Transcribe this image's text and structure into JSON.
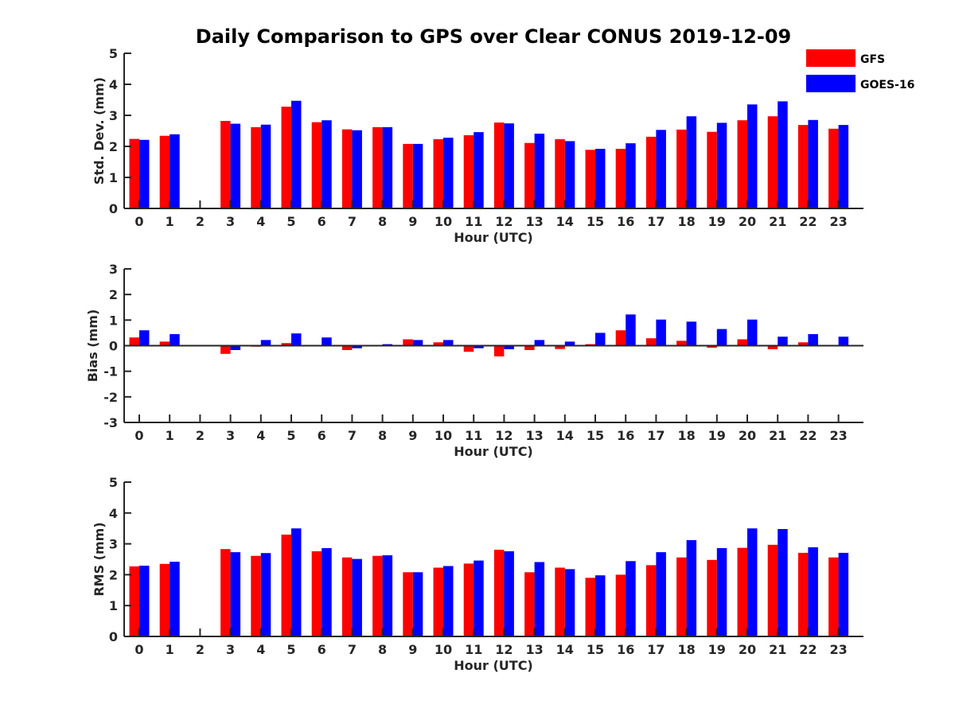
{
  "chart_data": [
    {
      "type": "bar",
      "title": "Daily Comparison to GPS over Clear CONUS 2019-12-09",
      "xlabel": "Hour (UTC)",
      "ylabel": "Std. Dev. (mm)",
      "ylim": [
        0,
        5
      ],
      "yticks": [
        "0",
        "1",
        "2",
        "3",
        "4",
        "5"
      ],
      "categories": [
        "0",
        "1",
        "2",
        "3",
        "4",
        "5",
        "6",
        "7",
        "8",
        "9",
        "10",
        "11",
        "12",
        "13",
        "14",
        "15",
        "16",
        "17",
        "18",
        "19",
        "20",
        "21",
        "22",
        "23"
      ],
      "series": [
        {
          "name": "GFS",
          "color": "#ff0000",
          "values": [
            2.24,
            2.34,
            null,
            2.82,
            2.62,
            3.28,
            2.78,
            2.55,
            2.62,
            2.08,
            2.23,
            2.36,
            2.77,
            2.11,
            2.23,
            1.89,
            1.92,
            2.31,
            2.54,
            2.47,
            2.84,
            2.97,
            2.69,
            2.57
          ]
        },
        {
          "name": "GOES-16",
          "color": "#0000ff",
          "values": [
            2.21,
            2.39,
            null,
            2.73,
            2.7,
            3.47,
            2.84,
            2.52,
            2.62,
            2.08,
            2.28,
            2.46,
            2.74,
            2.41,
            2.17,
            1.92,
            2.1,
            2.53,
            2.97,
            2.76,
            3.35,
            3.45,
            2.85,
            2.69
          ]
        }
      ]
    },
    {
      "type": "bar",
      "xlabel": "Hour (UTC)",
      "ylabel": "Bias (mm)",
      "ylim": [
        -3,
        3
      ],
      "yticks": [
        "-3",
        "-2",
        "-1",
        "0",
        "1",
        "2",
        "3"
      ],
      "categories": [
        "0",
        "1",
        "2",
        "3",
        "4",
        "5",
        "6",
        "7",
        "8",
        "9",
        "10",
        "11",
        "12",
        "13",
        "14",
        "15",
        "16",
        "17",
        "18",
        "19",
        "20",
        "21",
        "22",
        "23"
      ],
      "series": [
        {
          "name": "GFS",
          "color": "#ff0000",
          "values": [
            0.32,
            0.16,
            null,
            -0.32,
            -0.04,
            0.1,
            0.0,
            -0.17,
            0.02,
            0.25,
            0.13,
            -0.24,
            -0.42,
            -0.17,
            -0.13,
            0.06,
            0.6,
            0.29,
            0.19,
            -0.08,
            0.25,
            -0.14,
            0.13,
            -0.03
          ]
        },
        {
          "name": "GOES-16",
          "color": "#0000ff",
          "values": [
            0.6,
            0.45,
            null,
            -0.17,
            0.22,
            0.48,
            0.32,
            -0.1,
            0.06,
            0.22,
            0.22,
            -0.1,
            -0.14,
            0.22,
            0.16,
            0.5,
            1.22,
            1.02,
            0.94,
            0.65,
            1.02,
            0.35,
            0.45,
            0.35
          ]
        }
      ]
    },
    {
      "type": "bar",
      "xlabel": "Hour (UTC)",
      "ylabel": "RMS (mm)",
      "ylim": [
        0,
        5
      ],
      "yticks": [
        "0",
        "1",
        "2",
        "3",
        "4",
        "5"
      ],
      "categories": [
        "0",
        "1",
        "2",
        "3",
        "4",
        "5",
        "6",
        "7",
        "8",
        "9",
        "10",
        "11",
        "12",
        "13",
        "14",
        "15",
        "16",
        "17",
        "18",
        "19",
        "20",
        "21",
        "22",
        "23"
      ],
      "series": [
        {
          "name": "GFS",
          "color": "#ff0000",
          "values": [
            2.27,
            2.35,
            null,
            2.83,
            2.61,
            3.3,
            2.76,
            2.56,
            2.61,
            2.08,
            2.23,
            2.36,
            2.81,
            2.08,
            2.23,
            1.9,
            2.0,
            2.31,
            2.56,
            2.48,
            2.87,
            2.97,
            2.71,
            2.56
          ]
        },
        {
          "name": "GOES-16",
          "color": "#0000ff",
          "values": [
            2.29,
            2.42,
            null,
            2.73,
            2.7,
            3.5,
            2.86,
            2.51,
            2.63,
            2.08,
            2.28,
            2.46,
            2.76,
            2.41,
            2.18,
            1.98,
            2.44,
            2.73,
            3.12,
            2.86,
            3.5,
            3.48,
            2.89,
            2.71
          ]
        }
      ]
    }
  ],
  "legend": {
    "position": "top-right",
    "entries": [
      {
        "label": "GFS",
        "color": "#ff0000"
      },
      {
        "label": "GOES-16",
        "color": "#0000ff"
      }
    ]
  }
}
